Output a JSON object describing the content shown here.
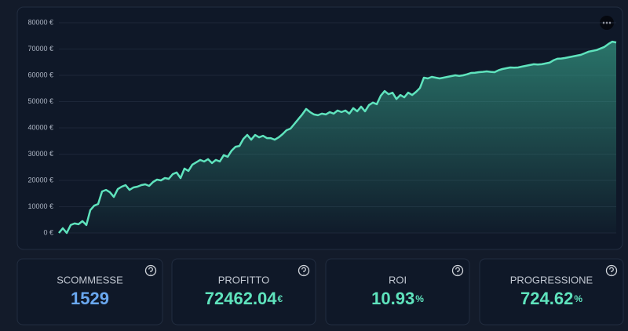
{
  "chart_data": {
    "type": "area",
    "color": "#5fe3bd",
    "grid": true,
    "ylim": [
      0,
      80000
    ],
    "yticks": [
      {
        "value": 0,
        "label": "0 €"
      },
      {
        "value": 10000,
        "label": "10000 €"
      },
      {
        "value": 20000,
        "label": "20000 €"
      },
      {
        "value": 30000,
        "label": "30000 €"
      },
      {
        "value": 40000,
        "label": "40000 €"
      },
      {
        "value": 50000,
        "label": "50000 €"
      },
      {
        "value": 60000,
        "label": "60000 €"
      },
      {
        "value": 70000,
        "label": "70000 €"
      },
      {
        "value": 80000,
        "label": "80000 €"
      }
    ],
    "values": [
      0,
      1800,
      0,
      3000,
      3600,
      3300,
      4500,
      3000,
      8700,
      10400,
      11000,
      15800,
      16400,
      15500,
      13700,
      16700,
      17600,
      18200,
      16400,
      17300,
      17600,
      18200,
      18500,
      17900,
      19400,
      20300,
      20000,
      20900,
      20600,
      22400,
      23000,
      20900,
      24500,
      23600,
      26000,
      26900,
      27800,
      27200,
      28100,
      26600,
      27800,
      27200,
      29600,
      29000,
      31300,
      32800,
      33100,
      35800,
      37300,
      35500,
      37300,
      36400,
      37000,
      36100,
      36100,
      35500,
      36400,
      37600,
      39100,
      39700,
      41500,
      43300,
      45100,
      47200,
      46000,
      45100,
      44800,
      45400,
      45100,
      46000,
      45400,
      46600,
      46000,
      46600,
      45400,
      47500,
      46300,
      48100,
      46300,
      48700,
      49600,
      49000,
      52200,
      54000,
      52800,
      53400,
      51000,
      52500,
      51600,
      53400,
      52500,
      53700,
      55200,
      59100,
      58800,
      59400,
      59100,
      58800,
      59100,
      59400,
      59700,
      60000,
      59800,
      60000,
      60400,
      60900,
      61000,
      61200,
      61300,
      61500,
      61300,
      61200,
      61900,
      62400,
      62700,
      63000,
      62900,
      63000,
      63300,
      63600,
      63900,
      64200,
      64100,
      64200,
      64500,
      64800,
      65700,
      66300,
      66400,
      66600,
      66900,
      67200,
      67500,
      67800,
      68400,
      69000,
      69300,
      69600,
      70200,
      70800,
      71900,
      72800,
      72500
    ]
  },
  "stats": [
    {
      "label": "SCOMMESSE",
      "value": "1529",
      "color": "#6aa8f0"
    },
    {
      "label": "PROFITTO",
      "value": "72462.04",
      "unit": "€",
      "color": "#5fe3bd"
    },
    {
      "label": "ROI",
      "value": "10.93",
      "unit": "%",
      "color": "#5fe3bd"
    },
    {
      "label": "PROGRESSIONE",
      "value": "724.62",
      "unit": "%",
      "color": "#5fe3bd"
    }
  ]
}
